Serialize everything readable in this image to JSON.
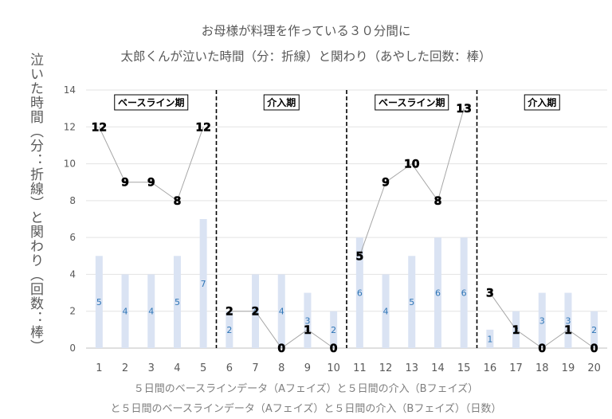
{
  "chart_data": {
    "type": "bar",
    "title": "お母様が料理を作っている３０分間に",
    "subtitle": "太郎くんが泣いた時間（分：折線）と関わり（あやした回数：棒）",
    "ylabel": "泣いた時間（分：折線）と関わり（回数：棒）",
    "xlabel": "５日間のベースラインデータ（Aフェイズ）と５日間の介入（Bフェイズ）",
    "xlabel2": "と５日間のベースラインデータ（Aフェイズ）と５日間の介入（Bフェイズ）（日数）",
    "categories": [
      "1",
      "2",
      "3",
      "4",
      "5",
      "6",
      "7",
      "8",
      "9",
      "10",
      "11",
      "12",
      "13",
      "14",
      "15",
      "16",
      "17",
      "18",
      "19",
      "20"
    ],
    "ylim": [
      0,
      14
    ],
    "yticks": [
      0,
      2,
      4,
      6,
      8,
      10,
      12,
      14
    ],
    "grid": true,
    "series": [
      {
        "type": "bar",
        "color": "#dae3f3",
        "label_color": "#2e75b6",
        "values": [
          5,
          4,
          4,
          5,
          7,
          2,
          4,
          4,
          3,
          2,
          6,
          4,
          5,
          6,
          6,
          1,
          2,
          3,
          3,
          2
        ]
      },
      {
        "type": "line",
        "color": "#a6a6a6",
        "values": [
          12,
          9,
          9,
          8,
          12,
          2,
          2,
          0,
          1,
          0,
          5,
          9,
          10,
          8,
          13,
          3,
          1,
          0,
          1,
          0
        ]
      }
    ],
    "phases": [
      {
        "label": "ベースライン期",
        "from": 1,
        "to": 5
      },
      {
        "label": "介入期",
        "from": 6,
        "to": 10
      },
      {
        "label": "ベースライン期",
        "from": 11,
        "to": 15
      },
      {
        "label": "介入期",
        "from": 16,
        "to": 20
      }
    ]
  }
}
